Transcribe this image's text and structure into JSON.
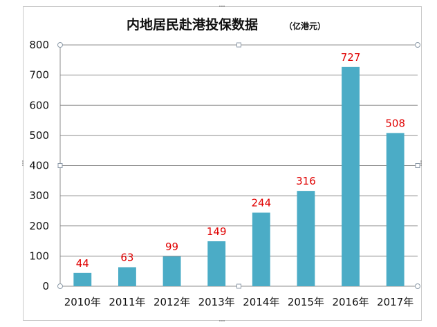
{
  "chart_data": {
    "type": "bar",
    "title": "内地居民赴港投保数据",
    "subtitle": "（亿港元）",
    "categories": [
      "2010年",
      "2011年",
      "2012年",
      "2013年",
      "2014年",
      "2015年",
      "2016年",
      "2017年"
    ],
    "values": [
      44,
      63,
      99,
      149,
      244,
      316,
      727,
      508
    ],
    "ylim": [
      0,
      800
    ],
    "yticks": [
      0,
      100,
      200,
      300,
      400,
      500,
      600,
      700,
      800
    ],
    "xlabel": "",
    "ylabel": "",
    "grid": true,
    "legend": "none",
    "colors": {
      "bar": "#4bacc6",
      "data_label": "#e00000",
      "gridline": "#8c8c8c"
    }
  }
}
